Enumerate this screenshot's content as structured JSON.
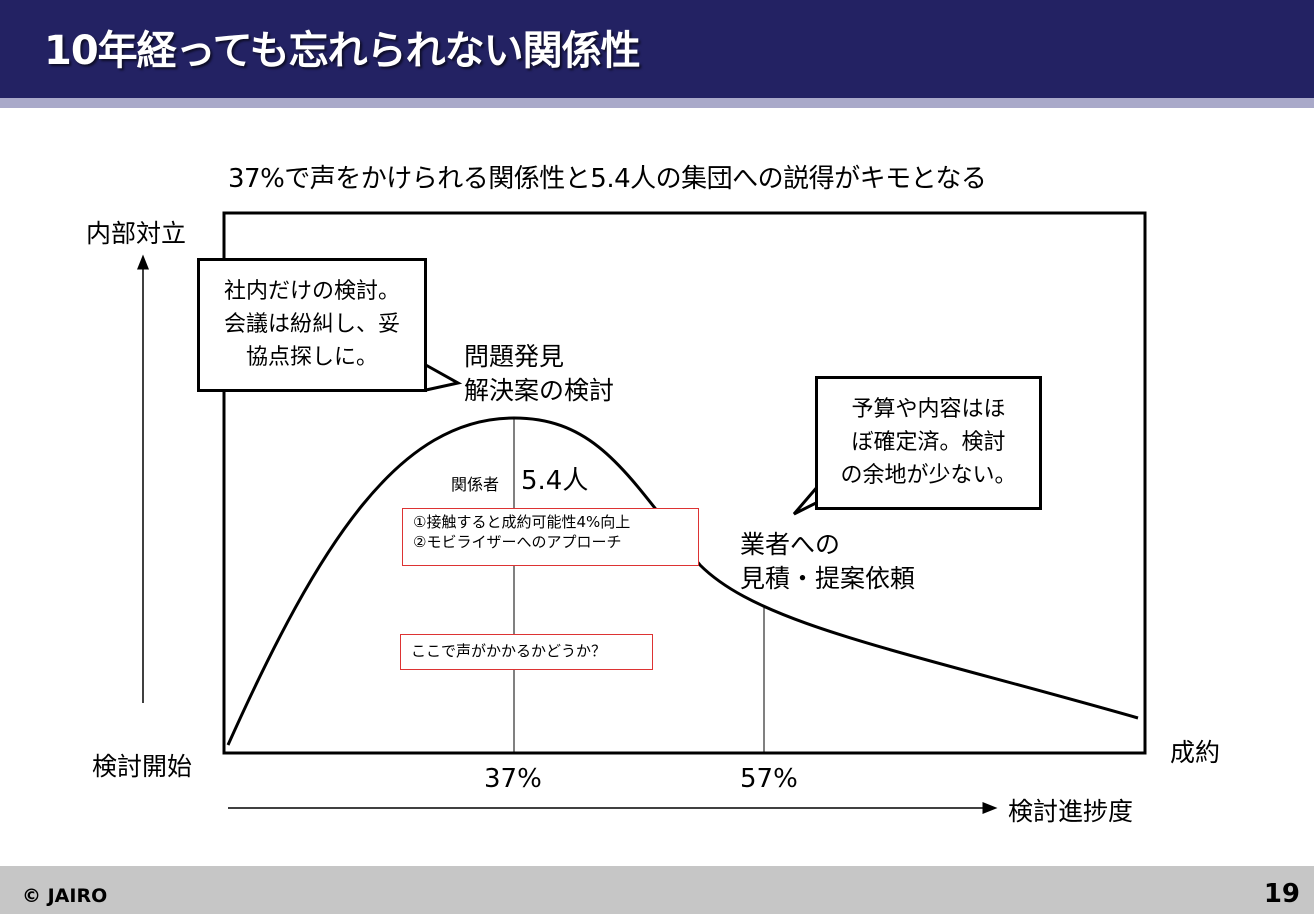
{
  "header": {
    "title": "10年経っても忘れられない関係性"
  },
  "subtitle": "37%で声をかけられる関係性と5.4人の集団への説得がキモとなる",
  "axes": {
    "y_top": "内部対立",
    "y_bottom": "検討開始",
    "x_end": "成約",
    "x_label": "検討進捗度",
    "x_tick_37": "37%",
    "x_tick_57": "57%"
  },
  "annotations": {
    "peak_line1": "問題発見",
    "peak_line2": "解決案の検討",
    "stakeholders_label": "関係者",
    "stakeholders_value": "5.4人",
    "vendor_line1": "業者への",
    "vendor_line2": "見積・提案依頼"
  },
  "bubbles": {
    "left": [
      "社内だけの検討。",
      "会議は紛糾し、妥",
      "協点探しに。"
    ],
    "right": [
      "予算や内容はほ",
      "ぼ確定済。検討",
      "の余地が少ない。"
    ]
  },
  "redboxes": {
    "points": [
      "①接触すると成約可能性4%向上",
      "②モビライザーへのアプローチ"
    ],
    "question": "ここで声がかかるかどうか？"
  },
  "footer": {
    "copyright": "© JAIRO",
    "page": "19"
  }
}
